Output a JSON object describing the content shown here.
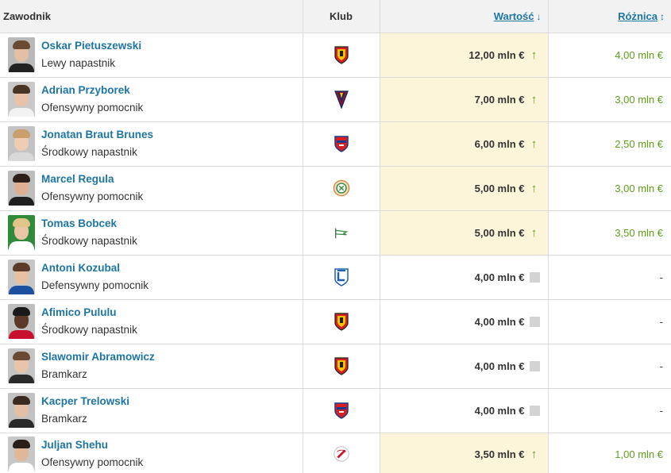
{
  "header": {
    "player": "Zawodnik",
    "club": "Klub",
    "value": "Wartość",
    "diff": "Różnica",
    "value_sort_icon": "sort-desc-icon",
    "diff_sort_icon": "sort-both-icon"
  },
  "colors": {
    "link": "#1d75a3",
    "highlight": "#fdf5d9",
    "up": "#5d9e1a",
    "neutral": "#d3d3d3"
  },
  "rows": [
    {
      "name": "Oskar Pietuszewski",
      "position": "Lewy napastnik",
      "club_icon": "jagiellonia-crest-icon",
      "value": "12,00 mln €",
      "trend": "up",
      "diff": "4,00 mln €"
    },
    {
      "name": "Adrian Przyborek",
      "position": "Ofensywny pomocnik",
      "club_icon": "pogon-crest-icon",
      "value": "7,00 mln €",
      "trend": "up",
      "diff": "3,00 mln €"
    },
    {
      "name": "Jonatan Braut Brunes",
      "position": "Środkowy napastnik",
      "club_icon": "rakow-crest-icon",
      "value": "6,00 mln €",
      "trend": "up",
      "diff": "2,50 mln €"
    },
    {
      "name": "Marcel Regula",
      "position": "Ofensywny pomocnik",
      "club_icon": "zaglebie-crest-icon",
      "value": "5,00 mln €",
      "trend": "up",
      "diff": "3,00 mln €"
    },
    {
      "name": "Tomas Bobcek",
      "position": "Środkowy napastnik",
      "club_icon": "lechia-crest-icon",
      "value": "5,00 mln €",
      "trend": "up",
      "diff": "3,50 mln €"
    },
    {
      "name": "Antoni Kozubal",
      "position": "Defensywny pomocnik",
      "club_icon": "lech-crest-icon",
      "value": "4,00 mln €",
      "trend": "none",
      "diff": "-"
    },
    {
      "name": "Afimico Pululu",
      "position": "Środkowy napastnik",
      "club_icon": "jagiellonia-crest-icon",
      "value": "4,00 mln €",
      "trend": "none",
      "diff": "-"
    },
    {
      "name": "Slawomir Abramowicz",
      "position": "Bramkarz",
      "club_icon": "jagiellonia-crest-icon",
      "value": "4,00 mln €",
      "trend": "none",
      "diff": "-"
    },
    {
      "name": "Kacper Trelowski",
      "position": "Bramkarz",
      "club_icon": "rakow-crest-icon",
      "value": "4,00 mln €",
      "trend": "none",
      "diff": "-"
    },
    {
      "name": "Juljan Shehu",
      "position": "Ofensywny pomocnik",
      "club_icon": "widzew-crest-icon",
      "value": "3,50 mln €",
      "trend": "up",
      "diff": "1,00 mln €"
    }
  ]
}
